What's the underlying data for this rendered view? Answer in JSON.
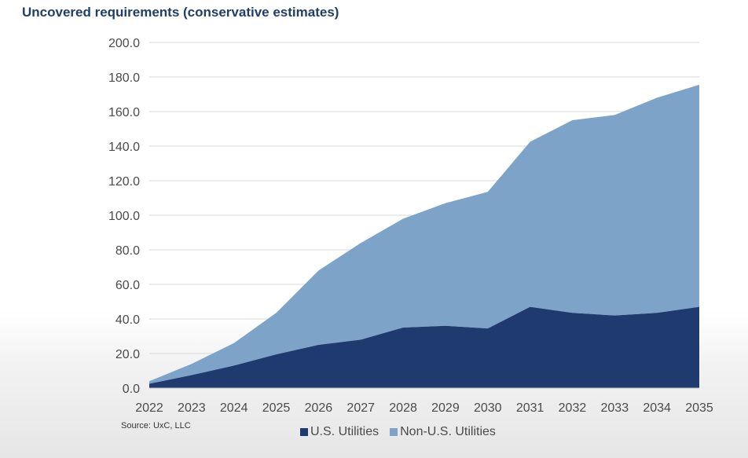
{
  "colors": {
    "us": "#1f3a6e",
    "non_us": "#7ea3c9",
    "grid": "#d9d9d9",
    "title": "#1f3f6b"
  },
  "source": "Source: UxC, LLC",
  "chart_data": {
    "type": "area",
    "stacked": true,
    "title": "Uncovered requirements (conservative estimates)",
    "xlabel": "",
    "ylabel": "",
    "ylim": [
      0,
      200
    ],
    "y_ticks": [
      "0.0",
      "20.0",
      "40.0",
      "60.0",
      "80.0",
      "100.0",
      "120.0",
      "140.0",
      "160.0",
      "180.0",
      "200.0"
    ],
    "x": [
      "2022",
      "2023",
      "2024",
      "2025",
      "2026",
      "2027",
      "2028",
      "2029",
      "2030",
      "2031",
      "2032",
      "2033",
      "2034",
      "2035"
    ],
    "series": [
      {
        "name": "U.S. Utilities",
        "color": "#1f3a6e",
        "values": [
          2.5,
          7.5,
          13,
          19.5,
          25,
          28,
          35,
          36,
          34.5,
          47,
          43.5,
          42,
          43.5,
          47
        ]
      },
      {
        "name": "Non-U.S. Utilities",
        "color": "#7ea3c9",
        "values": [
          1.5,
          6.5,
          13,
          24,
          43,
          56,
          63,
          71,
          79,
          95.5,
          111.5,
          116,
          124.5,
          128.5
        ]
      }
    ],
    "grid": true,
    "legend_position": "bottom"
  }
}
